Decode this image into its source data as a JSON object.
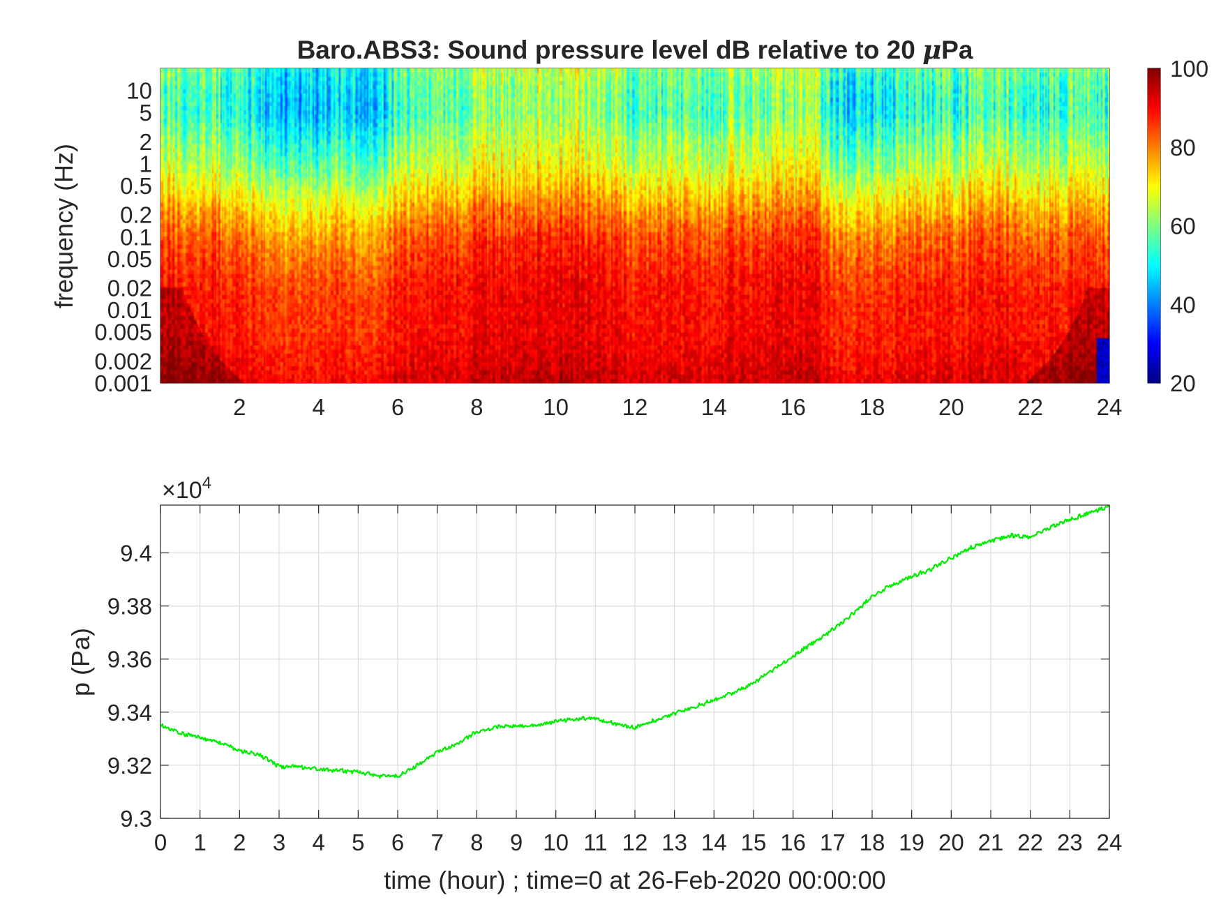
{
  "chart_data": [
    {
      "type": "heatmap",
      "title": "Baro.ABS3: Sound pressure level dB relative to 20 μPa",
      "title_main": "Baro.ABS3: Sound pressure level dB relative to 20 ",
      "title_mu": "μ",
      "title_unit_suffix": "Pa",
      "xlabel": "",
      "ylabel": "frequency (Hz)",
      "xlim": [
        0,
        24
      ],
      "ylim": [
        0.001,
        20
      ],
      "yscale": "log",
      "x_ticks": [
        2,
        4,
        6,
        8,
        10,
        12,
        14,
        16,
        18,
        20,
        22,
        24
      ],
      "x_tick_labels": [
        "2",
        "4",
        "6",
        "8",
        "10",
        "12",
        "14",
        "16",
        "18",
        "20",
        "22",
        "24"
      ],
      "y_ticks": [
        0.001,
        0.002,
        0.005,
        0.01,
        0.02,
        0.05,
        0.1,
        0.2,
        0.5,
        1,
        2,
        5,
        10
      ],
      "y_tick_labels": [
        "0.001",
        "0.002",
        "0.005",
        "0.01",
        "0.02",
        "0.05",
        "0.1",
        "0.2",
        "0.5",
        "1",
        "2",
        "5",
        "10"
      ],
      "colormap": "jet",
      "colorbar": {
        "range": [
          20,
          100
        ],
        "ticks": [
          20,
          40,
          60,
          80,
          100
        ],
        "tick_labels": [
          "20",
          "40",
          "60",
          "80",
          "100"
        ]
      },
      "profile": {
        "freq_hz": [
          0.001,
          0.002,
          0.005,
          0.01,
          0.02,
          0.05,
          0.1,
          0.2,
          0.5,
          1,
          2,
          5,
          10,
          20
        ],
        "typical_level_db": [
          92,
          90,
          88,
          88,
          87,
          84,
          81,
          76,
          68,
          62,
          58,
          52,
          53,
          56
        ]
      },
      "activity": {
        "time_hour": [
          0,
          1,
          2,
          2.5,
          3,
          4,
          5,
          5.5,
          6,
          7,
          8,
          9,
          10,
          11,
          12,
          13,
          14,
          15,
          16,
          16.5,
          17,
          18,
          19,
          20,
          21,
          22,
          23,
          24
        ],
        "offset_db": [
          3,
          2,
          1,
          -3,
          -7,
          -5,
          -3,
          -6,
          1,
          3,
          5,
          7,
          8,
          6,
          2,
          2,
          3,
          4,
          4,
          8,
          -3,
          -2,
          0,
          1,
          2,
          1,
          1,
          2
        ]
      },
      "grid": false
    },
    {
      "type": "line",
      "title": "",
      "xlabel": "time (hour) ; time=0 at 26-Feb-2020 00:00:00",
      "ylabel": "p (Pa)",
      "xlim": [
        0,
        24
      ],
      "ylim": [
        93000,
        94180
      ],
      "y_exponent_label": "×10",
      "y_exponent_value": "4",
      "x_ticks": [
        0,
        1,
        2,
        3,
        4,
        5,
        6,
        7,
        8,
        9,
        10,
        11,
        12,
        13,
        14,
        15,
        16,
        17,
        18,
        19,
        20,
        21,
        22,
        23,
        24
      ],
      "x_tick_labels": [
        "0",
        "1",
        "2",
        "3",
        "4",
        "5",
        "6",
        "7",
        "8",
        "9",
        "10",
        "11",
        "12",
        "13",
        "14",
        "15",
        "16",
        "17",
        "18",
        "19",
        "20",
        "21",
        "22",
        "23",
        "24"
      ],
      "y_ticks": [
        93000,
        93200,
        93400,
        93600,
        93800,
        94000
      ],
      "y_tick_labels": [
        "9.3",
        "9.32",
        "9.34",
        "9.36",
        "9.38",
        "9.4"
      ],
      "grid": true,
      "series": [
        {
          "color": "#00ee00",
          "x": [
            0,
            0.5,
            1,
            1.5,
            2,
            2.5,
            3,
            3.5,
            4,
            4.5,
            5,
            5.5,
            6,
            6.5,
            7,
            7.5,
            8,
            8.5,
            9,
            9.5,
            10,
            10.5,
            11,
            11.5,
            12,
            12.5,
            13,
            13.5,
            14,
            14.5,
            15,
            15.5,
            16,
            16.5,
            17,
            17.5,
            18,
            18.5,
            19,
            19.5,
            20,
            20.5,
            21,
            21.5,
            22,
            22.5,
            23,
            23.5,
            24
          ],
          "y": [
            93350,
            93320,
            93305,
            93285,
            93255,
            93240,
            93195,
            93195,
            93185,
            93180,
            93175,
            93160,
            93160,
            93200,
            93250,
            93280,
            93325,
            93345,
            93348,
            93350,
            93365,
            93375,
            93375,
            93355,
            93340,
            93370,
            93395,
            93420,
            93445,
            93475,
            93510,
            93560,
            93610,
            93660,
            93710,
            93770,
            93835,
            93880,
            93910,
            93940,
            93980,
            94020,
            94045,
            94065,
            94060,
            94095,
            94125,
            94150,
            94175
          ]
        }
      ]
    }
  ]
}
